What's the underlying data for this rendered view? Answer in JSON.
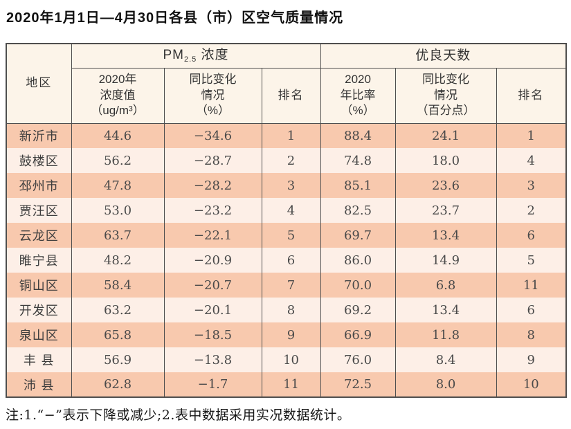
{
  "title": "2020年1月1日—4月30日各县（市）区空气质量情况",
  "note": "注:1.“−”表示下降或减少;2.表中数据采用实况数据统计。",
  "colors": {
    "row_odd_bg": "#f8c9ae",
    "row_even_bg": "#fdefe7",
    "header_bg": "#fcf4e9",
    "border_color": "#4e4e4e",
    "title_color": "#111111",
    "header_text": "#333333",
    "data_text": "#4a4a4a"
  },
  "table": {
    "region_header": "地区",
    "group1": {
      "prefix": "PM",
      "sub": "2.5",
      "suffix": " 浓度"
    },
    "group2": "优良天数",
    "col_headers": {
      "pm_value": "2020年\n浓度值\n（ug/m³）",
      "pm_change": "同比变化\n情况\n（%）",
      "pm_rank": "排名",
      "good_rate": "2020\n年比率\n（%）",
      "good_change": "同比变化\n情况\n（百分点）",
      "good_rank": "排名"
    },
    "rows": [
      {
        "region": "新沂市",
        "pm_value": "44.6",
        "pm_change": "−34.6",
        "pm_rank": "1",
        "good_rate": "88.4",
        "good_change": "24.1",
        "good_rank": "1"
      },
      {
        "region": "鼓楼区",
        "pm_value": "56.2",
        "pm_change": "−28.7",
        "pm_rank": "2",
        "good_rate": "74.8",
        "good_change": "18.0",
        "good_rank": "4"
      },
      {
        "region": "邳州市",
        "pm_value": "47.8",
        "pm_change": "−28.2",
        "pm_rank": "3",
        "good_rate": "85.1",
        "good_change": "23.6",
        "good_rank": "3"
      },
      {
        "region": "贾汪区",
        "pm_value": "53.0",
        "pm_change": "−23.2",
        "pm_rank": "4",
        "good_rate": "82.5",
        "good_change": "23.7",
        "good_rank": "2"
      },
      {
        "region": "云龙区",
        "pm_value": "63.7",
        "pm_change": "−22.1",
        "pm_rank": "5",
        "good_rate": "69.7",
        "good_change": "13.4",
        "good_rank": "6"
      },
      {
        "region": "睢宁县",
        "pm_value": "48.2",
        "pm_change": "−20.9",
        "pm_rank": "6",
        "good_rate": "86.0",
        "good_change": "14.9",
        "good_rank": "5"
      },
      {
        "region": "铜山区",
        "pm_value": "58.4",
        "pm_change": "−20.7",
        "pm_rank": "7",
        "good_rate": "70.0",
        "good_change": "6.8",
        "good_rank": "11"
      },
      {
        "region": "开发区",
        "pm_value": "63.2",
        "pm_change": "−20.1",
        "pm_rank": "8",
        "good_rate": "69.2",
        "good_change": "13.4",
        "good_rank": "6"
      },
      {
        "region": "泉山区",
        "pm_value": "65.8",
        "pm_change": "−18.5",
        "pm_rank": "9",
        "good_rate": "66.9",
        "good_change": "11.8",
        "good_rank": "8"
      },
      {
        "region": "丰 县",
        "pm_value": "56.9",
        "pm_change": "−13.8",
        "pm_rank": "10",
        "good_rate": "76.0",
        "good_change": "8.4",
        "good_rank": "9"
      },
      {
        "region": "沛 县",
        "pm_value": "62.8",
        "pm_change": "−1.7",
        "pm_rank": "11",
        "good_rate": "72.5",
        "good_change": "8.0",
        "good_rank": "10"
      }
    ]
  },
  "chart_data": {
    "type": "table",
    "title": "2020年1月1日—4月30日各县（市）区空气质量情况",
    "columns": [
      "地区",
      "PM2.5浓度 2020年浓度值(ug/m³)",
      "PM2.5浓度 同比变化情况(%)",
      "PM2.5浓度 排名",
      "优良天数 2020年比率(%)",
      "优良天数 同比变化情况(百分点)",
      "优良天数 排名"
    ],
    "rows": [
      [
        "新沂市",
        44.6,
        -34.6,
        1,
        88.4,
        24.1,
        1
      ],
      [
        "鼓楼区",
        56.2,
        -28.7,
        2,
        74.8,
        18.0,
        4
      ],
      [
        "邳州市",
        47.8,
        -28.2,
        3,
        85.1,
        23.6,
        3
      ],
      [
        "贾汪区",
        53.0,
        -23.2,
        4,
        82.5,
        23.7,
        2
      ],
      [
        "云龙区",
        63.7,
        -22.1,
        5,
        69.7,
        13.4,
        6
      ],
      [
        "睢宁县",
        48.2,
        -20.9,
        6,
        86.0,
        14.9,
        5
      ],
      [
        "铜山区",
        58.4,
        -20.7,
        7,
        70.0,
        6.8,
        11
      ],
      [
        "开发区",
        63.2,
        -20.1,
        8,
        69.2,
        13.4,
        6
      ],
      [
        "泉山区",
        65.8,
        -18.5,
        9,
        66.9,
        11.8,
        8
      ],
      [
        "丰县",
        56.9,
        -13.8,
        10,
        76.0,
        8.4,
        9
      ],
      [
        "沛县",
        62.8,
        -1.7,
        11,
        72.5,
        8.0,
        10
      ]
    ],
    "footnote": "注:1.“−”表示下降或减少;2.表中数据采用实况数据统计。"
  }
}
